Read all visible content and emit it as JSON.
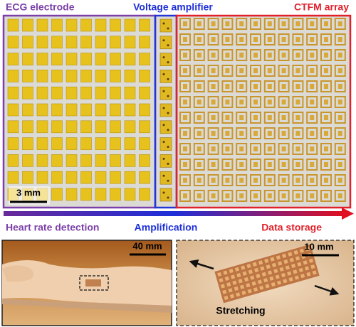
{
  "header": {
    "ecg": "ECG electrode",
    "amplifier": "Voltage amplifier",
    "ctfm": "CTFM array"
  },
  "scale_top": "3 mm",
  "flow": {
    "left": "Heart rate detection",
    "middle": "Amplification",
    "right": "Data storage"
  },
  "photo_left": {
    "scale": "40 mm"
  },
  "photo_right": {
    "scale": "10 mm",
    "caption": "Stretching"
  }
}
